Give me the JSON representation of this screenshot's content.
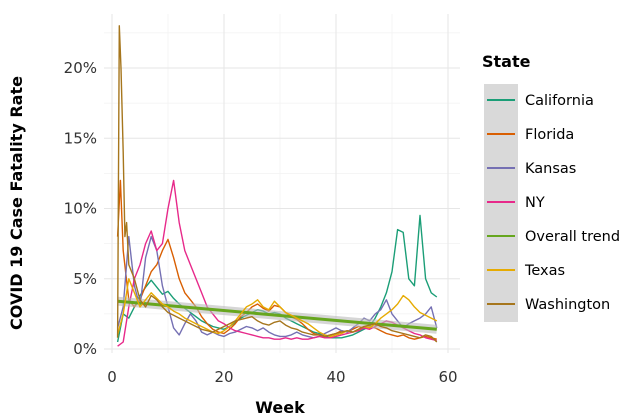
{
  "chart_data": {
    "type": "line",
    "xlabel": "Week",
    "ylabel": "COVID 19 Case Fatality Rate",
    "xlim": [
      0,
      60
    ],
    "ylim": [
      0,
      23
    ],
    "x_ticks": [
      0,
      20,
      40,
      60
    ],
    "x_tick_labels": [
      "0",
      "20",
      "40",
      "60"
    ],
    "y_ticks": [
      0,
      5,
      10,
      15,
      20
    ],
    "y_tick_labels": [
      "0%",
      "5%",
      "10%",
      "15%",
      "20%"
    ],
    "grid": true,
    "legend": {
      "title": "State",
      "position": "right"
    },
    "series": [
      {
        "name": "California",
        "color": "#1b9e77",
        "x": [
          1,
          2,
          3,
          4,
          5,
          6,
          7,
          8,
          9,
          10,
          11,
          12,
          13,
          14,
          15,
          16,
          17,
          18,
          19,
          20,
          21,
          22,
          23,
          24,
          25,
          26,
          27,
          28,
          29,
          30,
          31,
          32,
          33,
          34,
          35,
          36,
          37,
          38,
          39,
          40,
          41,
          42,
          43,
          44,
          45,
          46,
          47,
          48,
          49,
          50,
          51,
          52,
          53,
          54,
          55,
          56,
          57,
          58
        ],
        "values": [
          0.5,
          2.5,
          2.2,
          3.0,
          3.8,
          4.4,
          4.9,
          4.4,
          3.9,
          4.1,
          3.6,
          3.2,
          2.9,
          2.6,
          2.3,
          2.0,
          1.8,
          1.6,
          1.5,
          1.4,
          1.6,
          1.9,
          2.2,
          2.4,
          2.6,
          2.8,
          2.7,
          2.5,
          2.6,
          2.5,
          2.2,
          2.0,
          1.8,
          1.6,
          1.4,
          1.2,
          1.1,
          0.9,
          0.8,
          0.8,
          0.8,
          0.9,
          1.0,
          1.2,
          1.4,
          1.6,
          2.2,
          3.0,
          4.0,
          5.5,
          8.5,
          8.3,
          5.0,
          4.5,
          9.5,
          5.0,
          4.0,
          3.7
        ]
      },
      {
        "name": "Florida",
        "color": "#d95f02",
        "x": [
          1,
          1.5,
          2,
          3,
          4,
          5,
          6,
          7,
          8,
          9,
          10,
          11,
          12,
          13,
          14,
          15,
          16,
          17,
          18,
          19,
          20,
          21,
          22,
          23,
          24,
          25,
          26,
          27,
          28,
          29,
          30,
          31,
          32,
          33,
          34,
          35,
          36,
          37,
          38,
          39,
          40,
          41,
          42,
          43,
          44,
          45,
          46,
          47,
          48,
          49,
          50,
          51,
          52,
          53,
          54,
          55,
          56,
          57,
          58
        ],
        "values": [
          8.0,
          12.0,
          7.0,
          3.5,
          3.0,
          3.5,
          4.5,
          5.5,
          6.0,
          7.0,
          7.8,
          6.5,
          5.0,
          4.0,
          3.5,
          3.0,
          2.3,
          1.8,
          1.4,
          1.2,
          1.1,
          1.4,
          1.8,
          2.3,
          2.6,
          3.0,
          3.2,
          2.9,
          2.7,
          3.1,
          3.0,
          2.6,
          2.3,
          2.1,
          1.8,
          1.4,
          1.1,
          1.0,
          0.9,
          1.0,
          1.1,
          1.3,
          1.2,
          1.4,
          1.6,
          1.5,
          1.6,
          1.5,
          1.3,
          1.1,
          1.0,
          0.9,
          1.0,
          0.8,
          0.7,
          0.8,
          0.9,
          0.8,
          0.7
        ]
      },
      {
        "name": "Kansas",
        "color": "#7570b3",
        "x": [
          1,
          2,
          3,
          4,
          5,
          6,
          7,
          8,
          9,
          10,
          11,
          12,
          13,
          14,
          15,
          16,
          17,
          18,
          19,
          20,
          21,
          22,
          23,
          24,
          25,
          26,
          27,
          28,
          29,
          30,
          31,
          32,
          33,
          34,
          35,
          36,
          37,
          38,
          39,
          40,
          41,
          42,
          43,
          44,
          45,
          46,
          47,
          48,
          49,
          50,
          51,
          52,
          53,
          54,
          55,
          56,
          57,
          58
        ],
        "values": [
          1.5,
          3.0,
          8.0,
          4.5,
          3.0,
          6.5,
          8.0,
          7.0,
          4.5,
          3.0,
          1.5,
          1.0,
          1.8,
          2.5,
          2.0,
          1.2,
          1.0,
          1.2,
          1.0,
          0.9,
          1.1,
          1.2,
          1.4,
          1.6,
          1.5,
          1.3,
          1.5,
          1.2,
          1.0,
          0.9,
          0.9,
          1.0,
          1.2,
          1.0,
          0.9,
          0.8,
          0.9,
          1.1,
          1.3,
          1.5,
          1.3,
          1.2,
          1.5,
          1.8,
          2.2,
          2.0,
          2.5,
          2.8,
          3.5,
          2.5,
          2.0,
          1.5,
          1.8,
          2.0,
          2.2,
          2.5,
          3.0,
          1.5
        ]
      },
      {
        "name": "NY",
        "color": "#e7298a",
        "x": [
          1,
          2,
          3,
          4,
          5,
          6,
          7,
          8,
          9,
          10,
          11,
          12,
          13,
          14,
          15,
          16,
          17,
          18,
          19,
          20,
          21,
          22,
          23,
          24,
          25,
          26,
          27,
          28,
          29,
          30,
          31,
          32,
          33,
          34,
          35,
          36,
          37,
          38,
          39,
          40,
          41,
          42,
          43,
          44,
          45,
          46,
          47,
          48,
          49,
          50,
          51,
          52,
          53,
          54,
          55,
          56,
          57,
          58
        ],
        "values": [
          0.2,
          0.5,
          3.0,
          5.0,
          6.0,
          7.5,
          8.4,
          7.0,
          7.5,
          10.0,
          12.0,
          9.0,
          7.0,
          6.0,
          5.0,
          4.0,
          3.0,
          2.5,
          2.0,
          1.8,
          1.5,
          1.3,
          1.2,
          1.1,
          1.0,
          0.9,
          0.8,
          0.8,
          0.7,
          0.7,
          0.8,
          0.7,
          0.8,
          0.7,
          0.7,
          0.8,
          0.9,
          0.8,
          0.8,
          0.9,
          1.0,
          1.1,
          1.2,
          1.3,
          1.5,
          1.4,
          1.6,
          1.8,
          2.0,
          1.9,
          1.7,
          1.5,
          1.3,
          1.1,
          1.0,
          0.8,
          0.7,
          0.6
        ]
      },
      {
        "name": "Overall trend",
        "color": "#66a61e",
        "x": [
          1,
          58
        ],
        "values": [
          3.4,
          1.4
        ]
      },
      {
        "name": "Texas",
        "color": "#e6ab02",
        "x": [
          1,
          2,
          3,
          4,
          5,
          6,
          7,
          8,
          9,
          10,
          11,
          12,
          13,
          14,
          15,
          16,
          17,
          18,
          19,
          20,
          21,
          22,
          23,
          24,
          25,
          26,
          27,
          28,
          29,
          30,
          31,
          32,
          33,
          34,
          35,
          36,
          37,
          38,
          39,
          40,
          41,
          42,
          43,
          44,
          45,
          46,
          47,
          48,
          49,
          50,
          51,
          52,
          53,
          54,
          55,
          56,
          57,
          58
        ],
        "values": [
          1.0,
          2.5,
          5.0,
          4.0,
          3.0,
          3.5,
          4.0,
          3.6,
          3.2,
          3.0,
          2.7,
          2.5,
          2.2,
          2.0,
          1.8,
          1.6,
          1.4,
          1.2,
          1.1,
          1.3,
          1.6,
          2.0,
          2.5,
          3.0,
          3.2,
          3.5,
          3.0,
          2.8,
          3.4,
          3.0,
          2.6,
          2.4,
          2.2,
          2.0,
          1.8,
          1.5,
          1.2,
          1.0,
          0.9,
          1.0,
          1.1,
          1.3,
          1.2,
          1.4,
          1.6,
          1.5,
          1.8,
          2.2,
          2.5,
          2.8,
          3.2,
          3.8,
          3.5,
          3.0,
          2.6,
          2.4,
          2.2,
          2.0
        ]
      },
      {
        "name": "Washington",
        "color": "#a6761d",
        "x": [
          1,
          1.3,
          1.6,
          2,
          2.3,
          2.6,
          3,
          4,
          5,
          6,
          7,
          8,
          9,
          10,
          11,
          12,
          13,
          14,
          15,
          16,
          17,
          18,
          19,
          20,
          21,
          22,
          23,
          24,
          25,
          26,
          27,
          28,
          29,
          30,
          31,
          32,
          33,
          34,
          35,
          36,
          37,
          38,
          39,
          40,
          41,
          42,
          43,
          44,
          45,
          46,
          47,
          48,
          49,
          50,
          51,
          52,
          53,
          54,
          55,
          56,
          57,
          58
        ],
        "values": [
          0.8,
          23.0,
          20.0,
          14.0,
          8.0,
          9.0,
          6.0,
          5.0,
          3.5,
          3.0,
          3.8,
          3.5,
          3.0,
          2.6,
          2.4,
          2.2,
          2.0,
          1.8,
          1.6,
          1.4,
          1.3,
          1.2,
          1.4,
          1.6,
          1.8,
          2.0,
          2.1,
          2.2,
          2.3,
          2.0,
          1.8,
          1.7,
          1.9,
          2.0,
          1.7,
          1.5,
          1.4,
          1.2,
          1.1,
          1.0,
          1.0,
          0.9,
          1.0,
          1.1,
          1.2,
          1.3,
          1.2,
          1.4,
          1.6,
          1.7,
          1.8,
          1.6,
          1.5,
          1.3,
          1.2,
          1.1,
          1.0,
          0.9,
          0.8,
          1.0,
          0.9,
          0.5
        ]
      }
    ]
  }
}
